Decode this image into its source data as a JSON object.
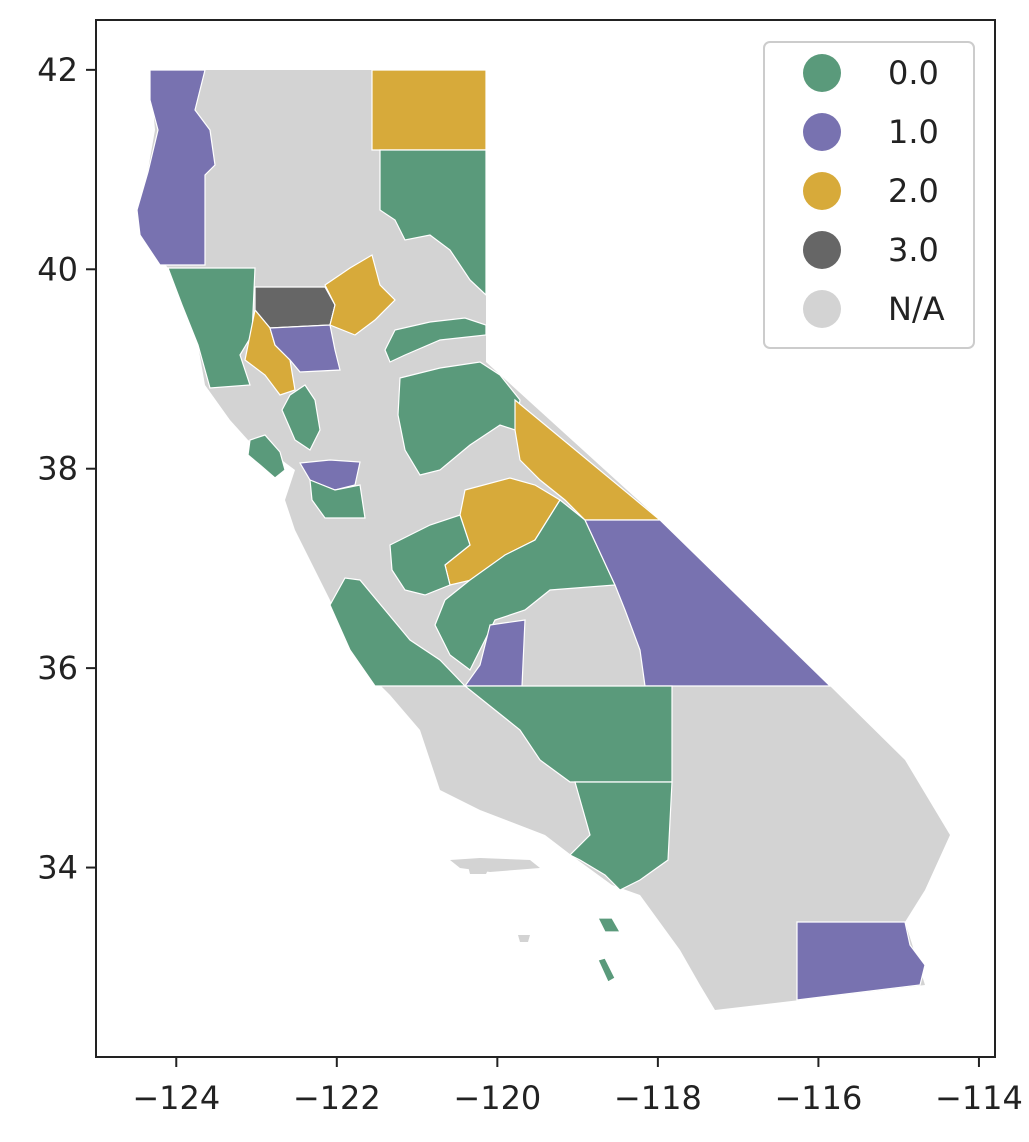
{
  "chart_data": {
    "type": "choropleth",
    "xlim": [
      -125,
      -113.8
    ],
    "ylim": [
      32.1,
      42.5
    ],
    "x_ticks": [
      -124,
      -122,
      -120,
      -118,
      -116,
      -114
    ],
    "x_tick_labels": [
      "−124",
      "−122",
      "−120",
      "−118",
      "−116",
      "−114"
    ],
    "y_ticks": [
      34,
      36,
      38,
      40,
      42
    ],
    "y_tick_labels": [
      "34",
      "36",
      "38",
      "40",
      "42"
    ],
    "legend_position": "top-right",
    "grid": false,
    "categories": [
      {
        "label": "0.0",
        "color": "#5a9a7b"
      },
      {
        "label": "1.0",
        "color": "#7872b0"
      },
      {
        "label": "2.0",
        "color": "#d7aa3a"
      },
      {
        "label": "3.0",
        "color": "#666666"
      },
      {
        "label": "N/A",
        "color": "#d3d3d3"
      }
    ]
  }
}
